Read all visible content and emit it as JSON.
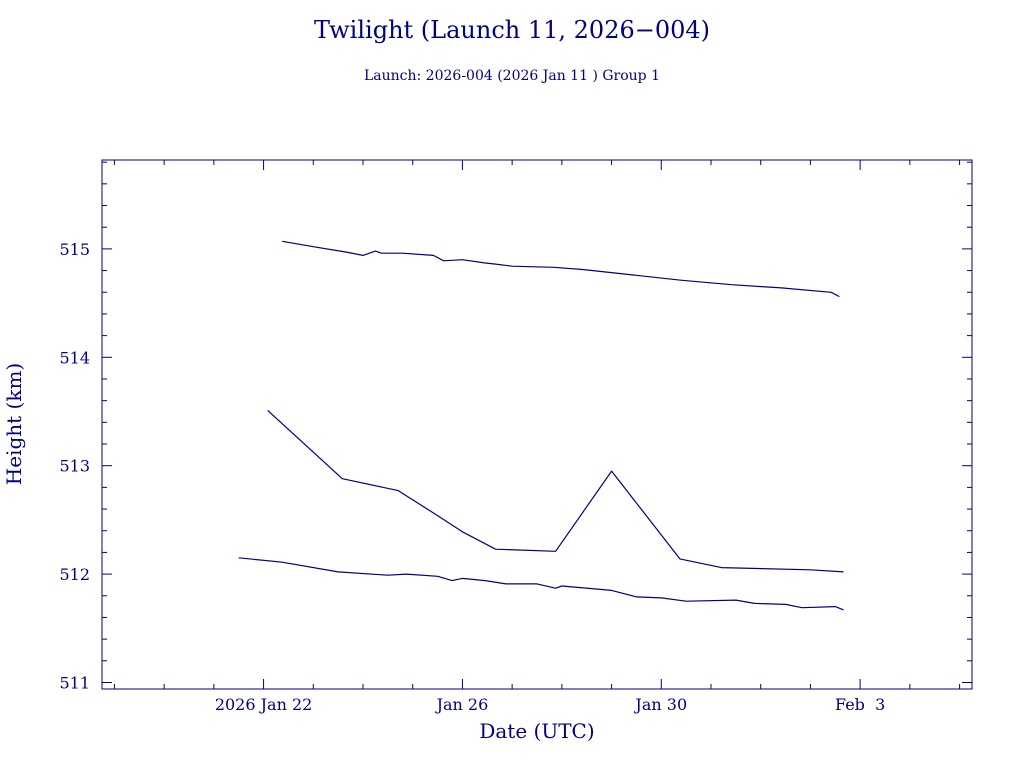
{
  "chart_data": {
    "type": "line",
    "title": "Twilight (Launch 11, 2026−004)",
    "subtitle": "Launch: 2026-004  (2026 Jan 11 )  Group 1",
    "xlabel": "Date (UTC)",
    "ylabel": "Height (km)",
    "x_tick_labels": [
      "2026 Jan 22",
      "Jan 26",
      "Jan 30",
      "Feb  3"
    ],
    "x_tick_values": [
      "2026-01-22",
      "2026-01-26",
      "2026-01-30",
      "2026-02-03"
    ],
    "xlim": [
      "2026-01-18 18:00",
      "2026-02-05 06:00"
    ],
    "y_tick_labels": [
      "511",
      "512",
      "513",
      "514",
      "515"
    ],
    "y_tick_values": [
      511,
      512,
      513,
      514,
      515
    ],
    "ylim": [
      510.94,
      515.82
    ],
    "grid": false,
    "color": "#000080",
    "series": [
      {
        "points": [
          [
            "2026-01-22 09:00",
            515.07
          ],
          [
            "2026-01-23 00:00",
            515.02
          ],
          [
            "2026-01-23 16:00",
            514.97
          ],
          [
            "2026-01-24 00:00",
            514.94
          ],
          [
            "2026-01-24 06:00",
            514.98
          ],
          [
            "2026-01-24 09:00",
            514.96
          ],
          [
            "2026-01-24 19:00",
            514.96
          ],
          [
            "2026-01-25 10:00",
            514.94
          ],
          [
            "2026-01-25 15:00",
            514.89
          ],
          [
            "2026-01-26 00:00",
            514.9
          ],
          [
            "2026-01-26 11:00",
            514.87
          ],
          [
            "2026-01-26 16:00",
            514.86
          ],
          [
            "2026-01-27 00:00",
            514.84
          ],
          [
            "2026-01-27 20:00",
            514.83
          ],
          [
            "2026-01-28 10:00",
            514.81
          ],
          [
            "2026-01-29 10:00",
            514.76
          ],
          [
            "2026-01-30 10:00",
            514.71
          ],
          [
            "2026-01-31 10:00",
            514.67
          ],
          [
            "2026-02-01 10:00",
            514.64
          ],
          [
            "2026-02-02 10:00",
            514.6
          ],
          [
            "2026-02-02 14:00",
            514.56
          ]
        ]
      },
      {
        "points": [
          [
            "2026-01-22 02:00",
            513.51
          ],
          [
            "2026-01-23 14:00",
            512.88
          ],
          [
            "2026-01-24 17:00",
            512.77
          ],
          [
            "2026-01-25 12:00",
            512.54
          ],
          [
            "2026-01-26 00:00",
            512.39
          ],
          [
            "2026-01-26 16:00",
            512.23
          ],
          [
            "2026-01-27 21:00",
            512.21
          ],
          [
            "2026-01-29 00:00",
            512.95
          ],
          [
            "2026-01-30 09:00",
            512.14
          ],
          [
            "2026-01-31 05:00",
            512.06
          ],
          [
            "2026-02-02 00:00",
            512.04
          ],
          [
            "2026-02-02 16:00",
            512.02
          ]
        ]
      },
      {
        "points": [
          [
            "2026-01-21 12:00",
            512.15
          ],
          [
            "2026-01-22 09:00",
            512.11
          ],
          [
            "2026-01-23 12:00",
            512.02
          ],
          [
            "2026-01-24 12:00",
            511.99
          ],
          [
            "2026-01-24 21:00",
            512.0
          ],
          [
            "2026-01-25 12:00",
            511.98
          ],
          [
            "2026-01-25 19:00",
            511.94
          ],
          [
            "2026-01-26 00:00",
            511.96
          ],
          [
            "2026-01-26 11:00",
            511.94
          ],
          [
            "2026-01-26 21:00",
            511.91
          ],
          [
            "2026-01-27 12:00",
            511.91
          ],
          [
            "2026-01-27 21:00",
            511.87
          ],
          [
            "2026-01-28 00:00",
            511.89
          ],
          [
            "2026-01-29 00:00",
            511.85
          ],
          [
            "2026-01-29 12:00",
            511.79
          ],
          [
            "2026-01-30 00:00",
            511.78
          ],
          [
            "2026-01-30 12:00",
            511.75
          ],
          [
            "2026-01-31 12:00",
            511.76
          ],
          [
            "2026-01-31 21:00",
            511.73
          ],
          [
            "2026-02-01 12:00",
            511.72
          ],
          [
            "2026-02-01 20:00",
            511.69
          ],
          [
            "2026-02-02 12:00",
            511.7
          ],
          [
            "2026-02-02 16:00",
            511.67
          ]
        ]
      }
    ]
  }
}
